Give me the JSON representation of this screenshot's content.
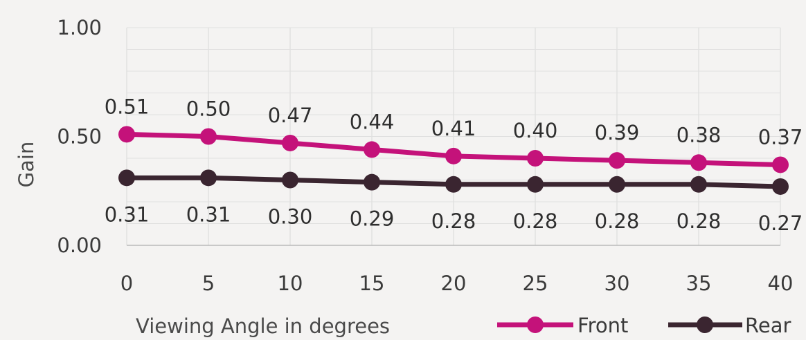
{
  "chart_data": {
    "type": "line",
    "title": "",
    "xlabel": "Viewing Angle in degrees",
    "ylabel": "Gain",
    "categories": [
      "0",
      "5",
      "10",
      "15",
      "20",
      "25",
      "30",
      "35",
      "40"
    ],
    "ylim": [
      0,
      1
    ],
    "yticks": [
      "0.00",
      "0.50",
      "1.00"
    ],
    "grid": true,
    "legend_position": "bottom-right",
    "series": [
      {
        "name": "Front",
        "color": "#c4127a",
        "values": [
          0.51,
          0.5,
          0.47,
          0.44,
          0.41,
          0.4,
          0.39,
          0.38,
          0.37
        ],
        "labels": [
          "0.51",
          "0.50",
          "0.47",
          "0.44",
          "0.41",
          "0.40",
          "0.39",
          "0.38",
          "0.37"
        ]
      },
      {
        "name": "Rear",
        "color": "#3a2530",
        "values": [
          0.31,
          0.31,
          0.3,
          0.29,
          0.28,
          0.28,
          0.28,
          0.28,
          0.27
        ],
        "labels": [
          "0.31",
          "0.31",
          "0.30",
          "0.29",
          "0.28",
          "0.28",
          "0.28",
          "0.28",
          "0.27"
        ]
      }
    ]
  }
}
